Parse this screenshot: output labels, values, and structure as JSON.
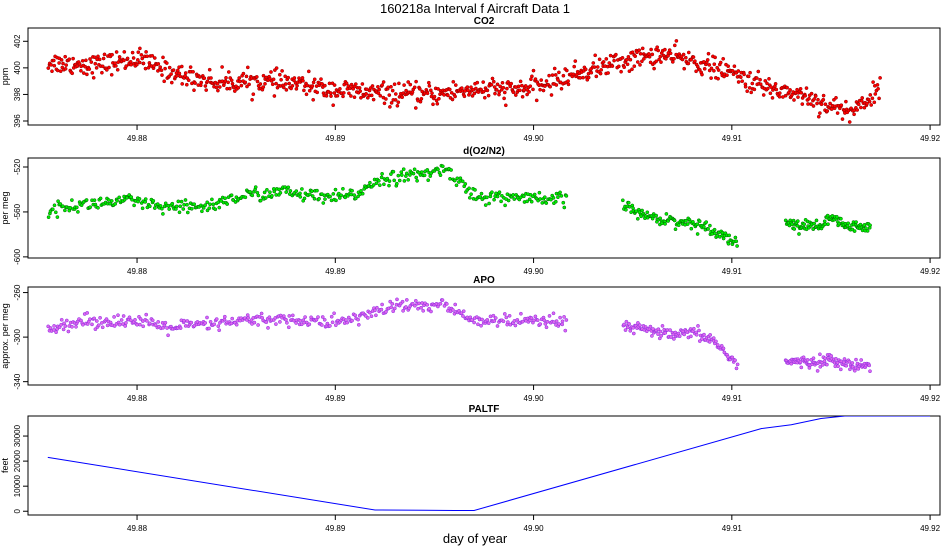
{
  "page_title": "160218a   Interval f Aircraft Data 1",
  "shared_xlabel": "day of year",
  "colors": {
    "co2": "#ff0000",
    "co2_outline": "#8b0000",
    "o2n2": "#00ee00",
    "o2n2_outline": "#006400",
    "apo": "#dd66ee",
    "apo_outline": "#8a2be2",
    "paltf": "#0000ff"
  },
  "chart_data": [
    {
      "type": "scatter",
      "id": "co2",
      "title": "CO2",
      "ylabel": "ppm",
      "xlabel": "",
      "xlim": [
        49.8745,
        49.9205
      ],
      "ylim": [
        395.7,
        403.0
      ],
      "x_ticks": [
        "49.88",
        "49.89",
        "49.90",
        "49.91",
        "49.92"
      ],
      "y_ticks": [
        "396",
        "398",
        "400",
        "402"
      ],
      "x_range": [
        49.8755,
        49.9175
      ],
      "trend": [
        [
          49.8755,
          400.4
        ],
        [
          49.878,
          400.2
        ],
        [
          49.88,
          400.7
        ],
        [
          49.882,
          399.5
        ],
        [
          49.884,
          398.9
        ],
        [
          49.886,
          399.0
        ],
        [
          49.888,
          398.8
        ],
        [
          49.8895,
          398.4
        ],
        [
          49.891,
          398.2
        ],
        [
          49.893,
          398.0
        ],
        [
          49.895,
          398.0
        ],
        [
          49.897,
          398.4
        ],
        [
          49.899,
          398.3
        ],
        [
          49.9005,
          398.7
        ],
        [
          49.902,
          399.5
        ],
        [
          49.904,
          400.3
        ],
        [
          49.9055,
          400.8
        ],
        [
          49.9065,
          401.0
        ],
        [
          49.908,
          400.5
        ],
        [
          49.91,
          399.6
        ],
        [
          49.9115,
          398.6
        ],
        [
          49.9135,
          398.0
        ],
        [
          49.915,
          397.1
        ],
        [
          49.916,
          396.7
        ],
        [
          49.9175,
          398.4
        ]
      ],
      "noise": 0.8,
      "count": 950
    },
    {
      "type": "scatter",
      "id": "o2n2",
      "title": "d(O2/N2)",
      "ylabel": "per meg",
      "xlabel": "",
      "xlim": [
        49.8745,
        49.9205
      ],
      "ylim": [
        -601,
        -512
      ],
      "x_ticks": [
        "49.88",
        "49.89",
        "49.90",
        "49.91",
        "49.92"
      ],
      "y_ticks": [
        "-600",
        "-560",
        "-520"
      ],
      "segments": [
        {
          "trend": [
            [
              49.8755,
              -558
            ],
            [
              49.8775,
              -553
            ],
            [
              49.8795,
              -550
            ],
            [
              49.8815,
              -557
            ],
            [
              49.8835,
              -555
            ],
            [
              49.8855,
              -545
            ],
            [
              49.8875,
              -542
            ],
            [
              49.8895,
              -548
            ],
            [
              49.891,
              -545
            ],
            [
              49.892,
              -532
            ],
            [
              49.893,
              -529
            ],
            [
              49.8945,
              -527
            ],
            [
              49.8955,
              -522
            ],
            [
              49.8965,
              -535
            ],
            [
              49.897,
              -547
            ],
            [
              49.899,
              -547
            ],
            [
              49.9005,
              -550
            ],
            [
              49.9017,
              -548
            ]
          ],
          "noise": 6,
          "count": 420
        },
        {
          "trend": [
            [
              49.9045,
              -553
            ],
            [
              49.9055,
              -563
            ],
            [
              49.907,
              -568
            ],
            [
              49.908,
              -570
            ],
            [
              49.909,
              -575
            ],
            [
              49.9098,
              -583
            ],
            [
              49.9103,
              -589
            ]
          ],
          "noise": 5,
          "count": 120
        },
        {
          "trend": [
            [
              49.9127,
              -568
            ],
            [
              49.9135,
              -573
            ],
            [
              49.9145,
              -572
            ],
            [
              49.915,
              -566
            ],
            [
              49.916,
              -574
            ],
            [
              49.917,
              -574
            ]
          ],
          "noise": 5,
          "count": 110
        }
      ]
    },
    {
      "type": "scatter",
      "id": "apo",
      "title": "APO",
      "ylabel": "approx. per meg",
      "xlabel": "",
      "xlim": [
        49.8745,
        49.9205
      ],
      "ylim": [
        -343,
        -255
      ],
      "x_ticks": [
        "49.88",
        "49.89",
        "49.90",
        "49.91",
        "49.92"
      ],
      "y_ticks": [
        "-340",
        "-300",
        "-260"
      ],
      "segments": [
        {
          "trend": [
            [
              49.8755,
              -290
            ],
            [
              49.8775,
              -286
            ],
            [
              49.8795,
              -285
            ],
            [
              49.8815,
              -291
            ],
            [
              49.8835,
              -289
            ],
            [
              49.8855,
              -285
            ],
            [
              49.8875,
              -284
            ],
            [
              49.8895,
              -287
            ],
            [
              49.891,
              -284
            ],
            [
              49.892,
              -277
            ],
            [
              49.893,
              -272
            ],
            [
              49.8945,
              -272
            ],
            [
              49.8955,
              -271
            ],
            [
              49.8965,
              -282
            ],
            [
              49.8975,
              -285
            ],
            [
              49.899,
              -286
            ],
            [
              49.9005,
              -287
            ],
            [
              49.9017,
              -285
            ]
          ],
          "noise": 6,
          "count": 420
        },
        {
          "trend": [
            [
              49.9045,
              -291
            ],
            [
              49.906,
              -294
            ],
            [
              49.907,
              -299
            ],
            [
              49.908,
              -296
            ],
            [
              49.909,
              -302
            ],
            [
              49.9098,
              -316
            ],
            [
              49.9103,
              -325
            ]
          ],
          "noise": 5,
          "count": 120
        },
        {
          "trend": [
            [
              49.9127,
              -322
            ],
            [
              49.914,
              -323
            ],
            [
              49.915,
              -320
            ],
            [
              49.916,
              -326
            ],
            [
              49.917,
              -324
            ]
          ],
          "noise": 5,
          "count": 110
        }
      ]
    },
    {
      "type": "line",
      "id": "paltf",
      "title": "PALTF",
      "ylabel": "feet",
      "xlabel": "day of year",
      "xlim": [
        49.8745,
        49.9205
      ],
      "ylim": [
        -1500,
        38000
      ],
      "x_ticks": [
        "49.88",
        "49.89",
        "49.90",
        "49.91",
        "49.92"
      ],
      "y_ticks": [
        "0",
        "10000",
        "20000",
        "30000"
      ],
      "points": [
        [
          49.8755,
          21500
        ],
        [
          49.892,
          500
        ],
        [
          49.8945,
          400
        ],
        [
          49.896,
          300
        ],
        [
          49.897,
          300
        ],
        [
          49.9115,
          33000
        ],
        [
          49.913,
          34500
        ],
        [
          49.9145,
          37000
        ],
        [
          49.9157,
          38000
        ],
        [
          49.92,
          38000
        ]
      ]
    }
  ]
}
